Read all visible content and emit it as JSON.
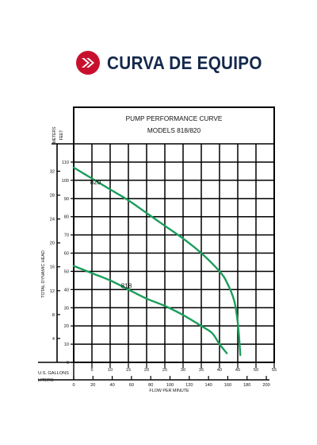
{
  "header": {
    "title": "CURVA DE EQUIPO",
    "icon": "double-chevron-right-icon",
    "accent_color": "#c8102e",
    "title_color": "#14284b"
  },
  "chart_data": {
    "type": "line",
    "title": "PUMP PERFORMANCE CURVE",
    "subtitle": "MODELS 818/820",
    "xlabel": "FLOW PER MINUTE",
    "x_axis_gallons_label": "U.S. GALLONS",
    "x_axis_liters_label": "LITERS",
    "y_axis_meters_label": "METERS",
    "y_axis_feet_label": "FEET",
    "ylabel": "TOTAL DYNAMIC HEAD",
    "xlim": [
      0,
      55
    ],
    "ylim": [
      0,
      110
    ],
    "gallon_ticks": [
      {
        "v": 5,
        "label": "5"
      },
      {
        "v": 10,
        "label": "10"
      },
      {
        "v": 15,
        "label": "15"
      },
      {
        "v": 20,
        "label": "20"
      },
      {
        "v": 25,
        "label": "25"
      },
      {
        "v": 30,
        "label": "30"
      },
      {
        "v": 35,
        "label": "35"
      },
      {
        "v": 40,
        "label": "40"
      },
      {
        "v": 45,
        "label": "45"
      },
      {
        "v": 50,
        "label": "50"
      },
      {
        "v": 55,
        "label": "55"
      }
    ],
    "liter_ticks": [
      {
        "v": 0,
        "label": "0"
      },
      {
        "v": 20,
        "label": "20"
      },
      {
        "v": 40,
        "label": "40"
      },
      {
        "v": 60,
        "label": "60"
      },
      {
        "v": 80,
        "label": "80"
      },
      {
        "v": 100,
        "label": "100"
      },
      {
        "v": 120,
        "label": "120"
      },
      {
        "v": 140,
        "label": "140"
      },
      {
        "v": 160,
        "label": "160"
      },
      {
        "v": 180,
        "label": "180"
      },
      {
        "v": 200,
        "label": "200"
      }
    ],
    "feet_ticks": [
      {
        "v": 0,
        "label": "0"
      },
      {
        "v": 10,
        "label": "10"
      },
      {
        "v": 20,
        "label": "20"
      },
      {
        "v": 30,
        "label": "30"
      },
      {
        "v": 40,
        "label": "40"
      },
      {
        "v": 50,
        "label": "50"
      },
      {
        "v": 60,
        "label": "60"
      },
      {
        "v": 70,
        "label": "70"
      },
      {
        "v": 80,
        "label": "80"
      },
      {
        "v": 90,
        "label": "90"
      },
      {
        "v": 100,
        "label": "100"
      },
      {
        "v": 110,
        "label": "110"
      }
    ],
    "meter_ticks": [
      {
        "v": 4,
        "label": "4"
      },
      {
        "v": 8,
        "label": "8"
      },
      {
        "v": 12,
        "label": "12"
      },
      {
        "v": 16,
        "label": "16"
      },
      {
        "v": 20,
        "label": "20"
      },
      {
        "v": 24,
        "label": "24"
      },
      {
        "v": 28,
        "label": "28"
      },
      {
        "v": 32,
        "label": "32"
      }
    ],
    "grid": true,
    "line_color": "#1a9e5c",
    "series": [
      {
        "name": "820",
        "x": [
          0,
          5,
          10,
          15,
          20,
          25,
          30,
          35,
          40,
          42,
          44,
          45,
          45.5,
          45.7
        ],
        "y": [
          107,
          101,
          95,
          89,
          82,
          75,
          68,
          60,
          50,
          44,
          34,
          22,
          10,
          4
        ]
      },
      {
        "name": "818",
        "x": [
          0,
          5,
          10,
          15,
          20,
          25,
          30,
          35,
          38,
          40,
          42
        ],
        "y": [
          53,
          49,
          45,
          40,
          35,
          31,
          26,
          20,
          16,
          10,
          5
        ]
      }
    ]
  }
}
